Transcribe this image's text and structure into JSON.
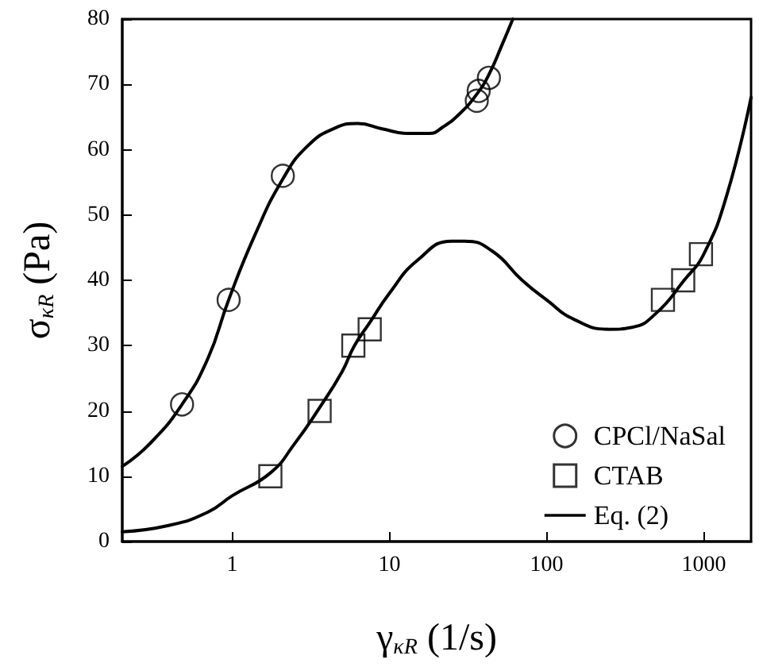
{
  "chart_data": {
    "type": "scatter",
    "xlabel": "γ$_{κR}$ (1/s)",
    "ylabel": "σ$_{κR}$ (Pa)",
    "log": "x",
    "xlim": [
      0.2,
      2000
    ],
    "xticks": [
      1,
      10,
      100,
      1000
    ],
    "ylim": [
      0,
      80
    ],
    "yticks": [
      0,
      10,
      20,
      30,
      40,
      50,
      60,
      70,
      80
    ],
    "grid": false,
    "legend": "bottom right",
    "series": [
      {
        "name": "CPCl/NaSal",
        "marker": "circle",
        "color": "#000000",
        "x": [
          0.48,
          0.95,
          2.1,
          36,
          37,
          43
        ],
        "values": [
          21,
          37,
          56,
          67.5,
          69,
          71
        ]
      },
      {
        "name": "CTAB",
        "marker": "square",
        "color": "#000000",
        "x": [
          1.75,
          3.6,
          5.9,
          7.5,
          550,
          740,
          960
        ],
        "values": [
          10,
          20,
          30,
          32.5,
          37,
          40,
          44
        ]
      },
      {
        "name": "Eq. (2)",
        "type": "line",
        "marker": "none",
        "line_style": "solid",
        "color": "#000000",
        "x": [
          0.2,
          0.3,
          0.48,
          0.7,
          0.95,
          1.4,
          2.1,
          3,
          4.5,
          6.3,
          9,
          13,
          18,
          22,
          28,
          36,
          43,
          52,
          61
        ],
        "values": [
          11.5,
          15,
          21,
          28,
          37,
          47,
          55.5,
          60.5,
          63.3,
          64,
          63.2,
          62.5,
          62.5,
          63.5,
          65.5,
          68.5,
          71.5,
          76,
          80
        ]
      },
      {
        "type": "line",
        "marker": "none",
        "line_style": "solid",
        "color": "#000000",
        "x": [
          0.2,
          0.4,
          0.7,
          1,
          1.75,
          2.5,
          3.6,
          5,
          6,
          7.5,
          10,
          15,
          25,
          30,
          45,
          70,
          100,
          150,
          250,
          350,
          500,
          750,
          1000,
          1400,
          2000
        ],
        "values": [
          1.5,
          2.5,
          4.5,
          7,
          10.5,
          15,
          20.5,
          26,
          30,
          33.5,
          38,
          43,
          46,
          46,
          44.5,
          40,
          37,
          34,
          32.5,
          32.8,
          35,
          40,
          44,
          53,
          68
        ]
      }
    ]
  }
}
